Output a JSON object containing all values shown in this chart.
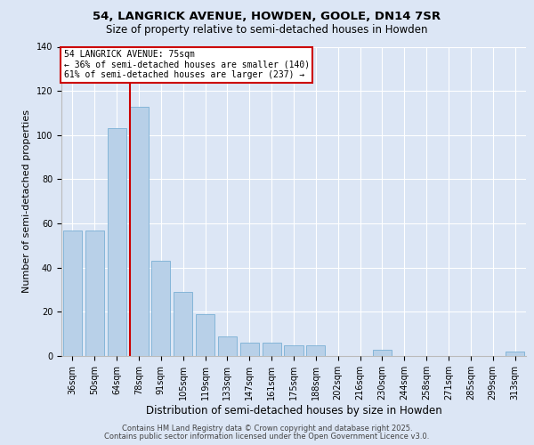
{
  "title1": "54, LANGRICK AVENUE, HOWDEN, GOOLE, DN14 7SR",
  "title2": "Size of property relative to semi-detached houses in Howden",
  "xlabel": "Distribution of semi-detached houses by size in Howden",
  "ylabel": "Number of semi-detached properties",
  "bins": [
    "36sqm",
    "50sqm",
    "64sqm",
    "78sqm",
    "91sqm",
    "105sqm",
    "119sqm",
    "133sqm",
    "147sqm",
    "161sqm",
    "175sqm",
    "188sqm",
    "202sqm",
    "216sqm",
    "230sqm",
    "244sqm",
    "258sqm",
    "271sqm",
    "285sqm",
    "299sqm",
    "313sqm"
  ],
  "values": [
    57,
    57,
    103,
    113,
    43,
    29,
    19,
    9,
    6,
    6,
    5,
    5,
    0,
    0,
    3,
    0,
    0,
    0,
    0,
    0,
    2
  ],
  "bar_color": "#b8d0e8",
  "bar_edge_color": "#7aafd4",
  "red_line_x": 2.6,
  "annotation_title": "54 LANGRICK AVENUE: 75sqm",
  "annotation_line1": "← 36% of semi-detached houses are smaller (140)",
  "annotation_line2": "61% of semi-detached houses are larger (237) →",
  "annotation_box_color": "#ffffff",
  "annotation_box_edge": "#cc0000",
  "red_line_color": "#cc0000",
  "footnote1": "Contains HM Land Registry data © Crown copyright and database right 2025.",
  "footnote2": "Contains public sector information licensed under the Open Government Licence v3.0.",
  "ylim": [
    0,
    140
  ],
  "bg_color": "#dce6f5",
  "plot_bg_color": "#dce6f5",
  "title_fontsize": 9.5,
  "subtitle_fontsize": 8.5,
  "ylabel_fontsize": 8,
  "xlabel_fontsize": 8.5,
  "tick_fontsize": 7,
  "footnote_fontsize": 6,
  "annot_fontsize": 7
}
